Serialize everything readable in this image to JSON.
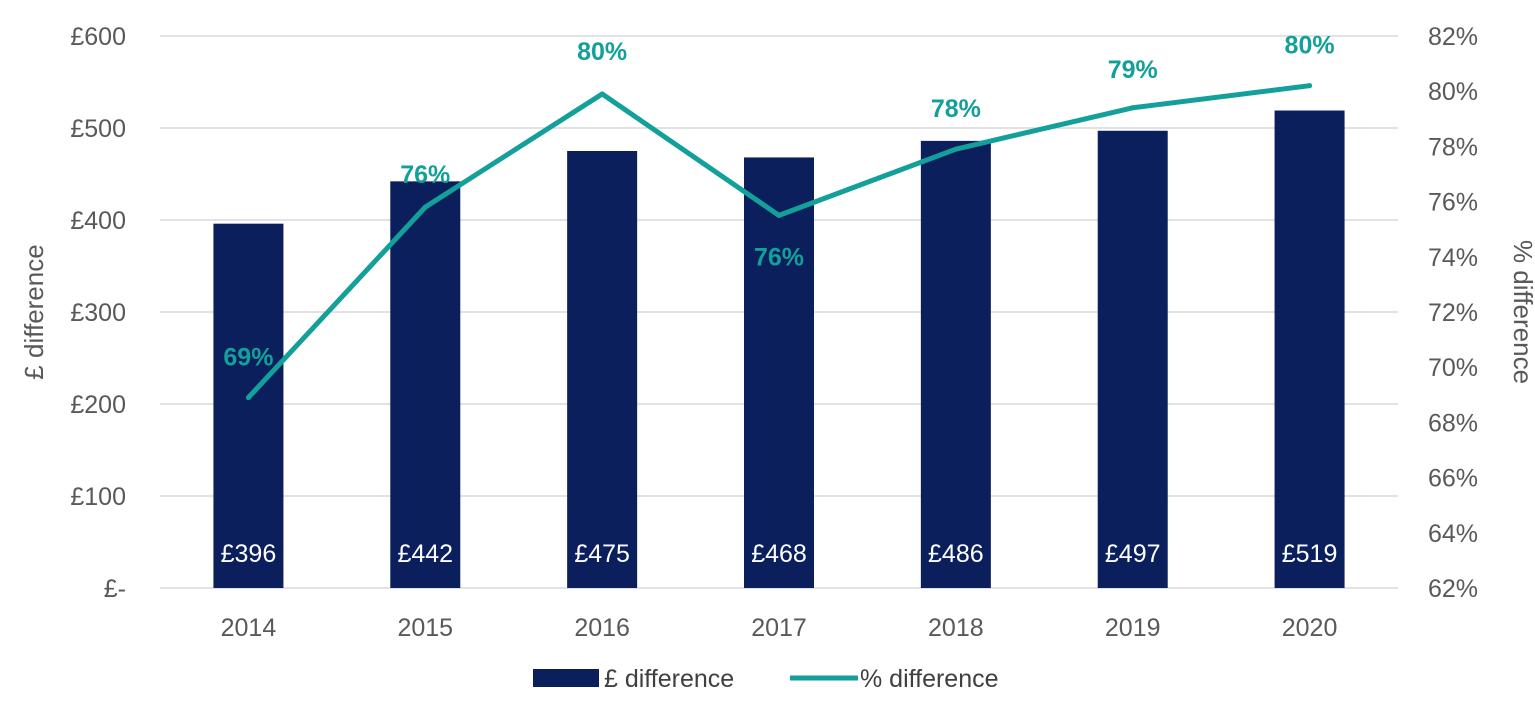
{
  "chart_data": {
    "type": "bar",
    "categories": [
      "2014",
      "2015",
      "2016",
      "2017",
      "2018",
      "2019",
      "2020"
    ],
    "series": [
      {
        "name": "£ difference",
        "type": "bar",
        "axis": "left",
        "color": "#0B1F5C",
        "values": [
          396,
          442,
          475,
          468,
          486,
          497,
          519
        ],
        "labels": [
          "£396",
          "£442",
          "£475",
          "£468",
          "£486",
          "£497",
          "£519"
        ]
      },
      {
        "name": "% difference",
        "type": "line",
        "axis": "right",
        "color": "#13A09A",
        "values": [
          68.9,
          75.8,
          79.9,
          75.5,
          77.9,
          79.4,
          80.2
        ],
        "labels": [
          "69%",
          "76%",
          "80%",
          "76%",
          "78%",
          "79%",
          "80%"
        ]
      }
    ],
    "ylabel": "£ difference",
    "y2label": "% difference",
    "ylim": [
      0,
      600
    ],
    "y2lim": [
      62,
      82
    ],
    "yticks": [
      "£-",
      "£100",
      "£200",
      "£300",
      "£400",
      "£500",
      "£600"
    ],
    "y2ticks": [
      "62%",
      "64%",
      "66%",
      "68%",
      "70%",
      "72%",
      "74%",
      "76%",
      "78%",
      "80%",
      "82%"
    ],
    "grid": true,
    "legend_position": "bottom"
  }
}
